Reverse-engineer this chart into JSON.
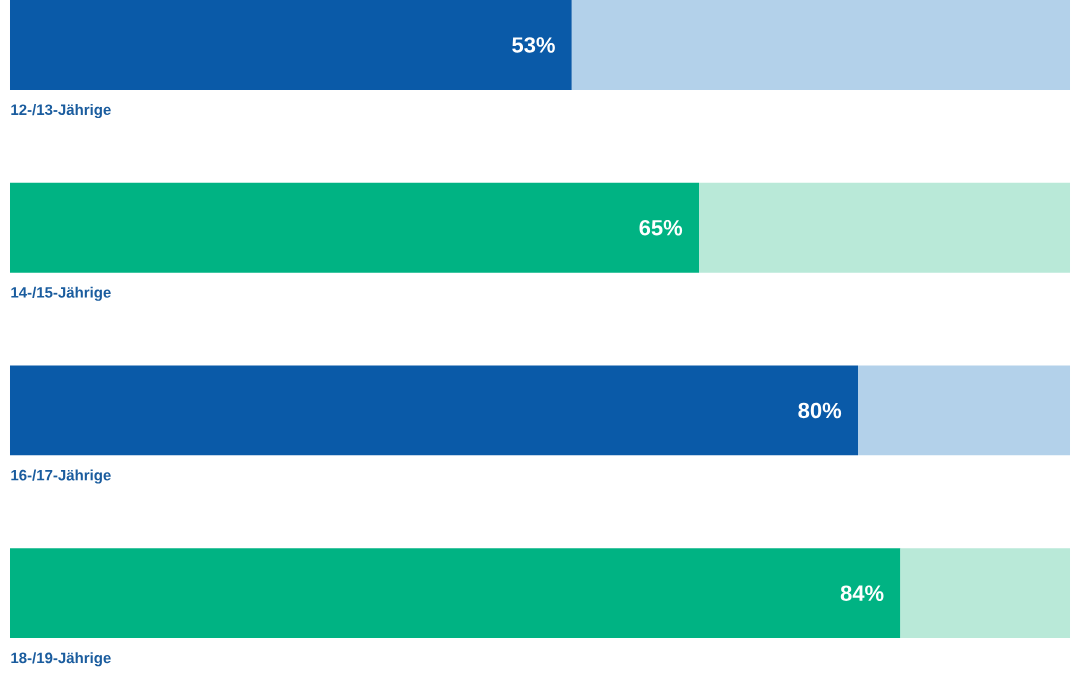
{
  "chart_data": {
    "type": "bar",
    "orientation": "horizontal",
    "stacked": true,
    "categories": [
      "12-/13-Jährige",
      "14-/15-Jährige",
      "16-/17-Jährige",
      "18-/19-Jährige"
    ],
    "series": [
      {
        "colors": [
          "#0a5aa8",
          "#00b383",
          "#0a5aa8",
          "#00b383"
        ],
        "values": [
          53,
          65,
          80,
          84
        ],
        "value_labels": [
          "53%",
          "65%",
          "80%",
          "84%"
        ]
      },
      {
        "colors": [
          "#b3d1ea",
          "#b9e9d8",
          "#b3d1ea",
          "#b9e9d8"
        ],
        "values": [
          47,
          35,
          20,
          16
        ]
      }
    ],
    "xlim": [
      0,
      100
    ],
    "tick_labels": false
  }
}
